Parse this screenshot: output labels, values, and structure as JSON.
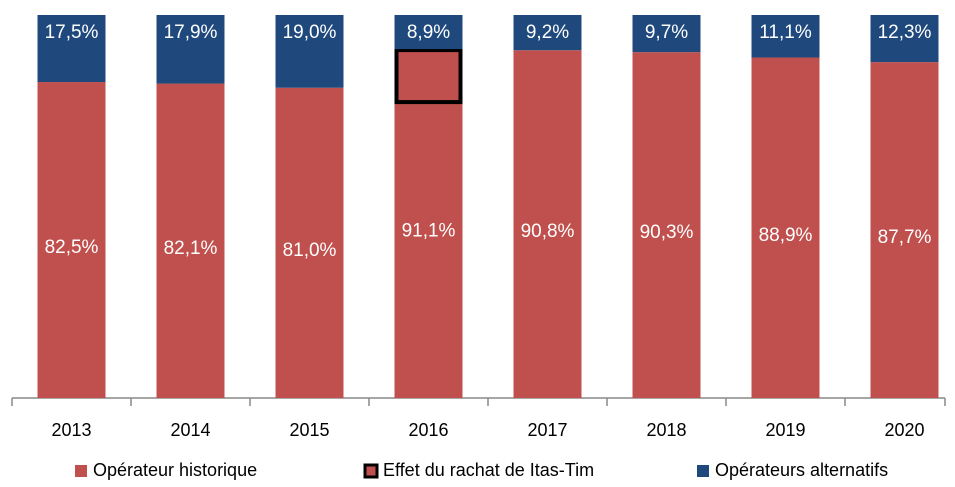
{
  "chart_data": {
    "type": "stacked_bar",
    "categories": [
      "2013",
      "2014",
      "2015",
      "2016",
      "2017",
      "2018",
      "2019",
      "2020"
    ],
    "series": [
      {
        "name": "Opérateur historique",
        "color": "#c0504d",
        "values": [
          82.5,
          82.1,
          81.0,
          91.1,
          90.8,
          90.3,
          88.9,
          87.7
        ],
        "value_labels": [
          "82,5%",
          "82,1%",
          "81,0%",
          "91,1%",
          "90,8%",
          "90,3%",
          "88,9%",
          "87,7%"
        ]
      },
      {
        "name": "Opérateurs alternatifs",
        "color": "#1f497d",
        "values": [
          17.5,
          17.9,
          19.0,
          8.9,
          9.2,
          9.7,
          11.1,
          12.3
        ],
        "value_labels": [
          "17,5%",
          "17,9%",
          "19,0%",
          "8,9%",
          "9,2%",
          "9,7%",
          "11,1%",
          "12,3%"
        ]
      }
    ],
    "highlight": {
      "label": "Effet du rachat de Itas-Tim",
      "category": "2016"
    },
    "ylim": [
      0,
      100
    ]
  }
}
